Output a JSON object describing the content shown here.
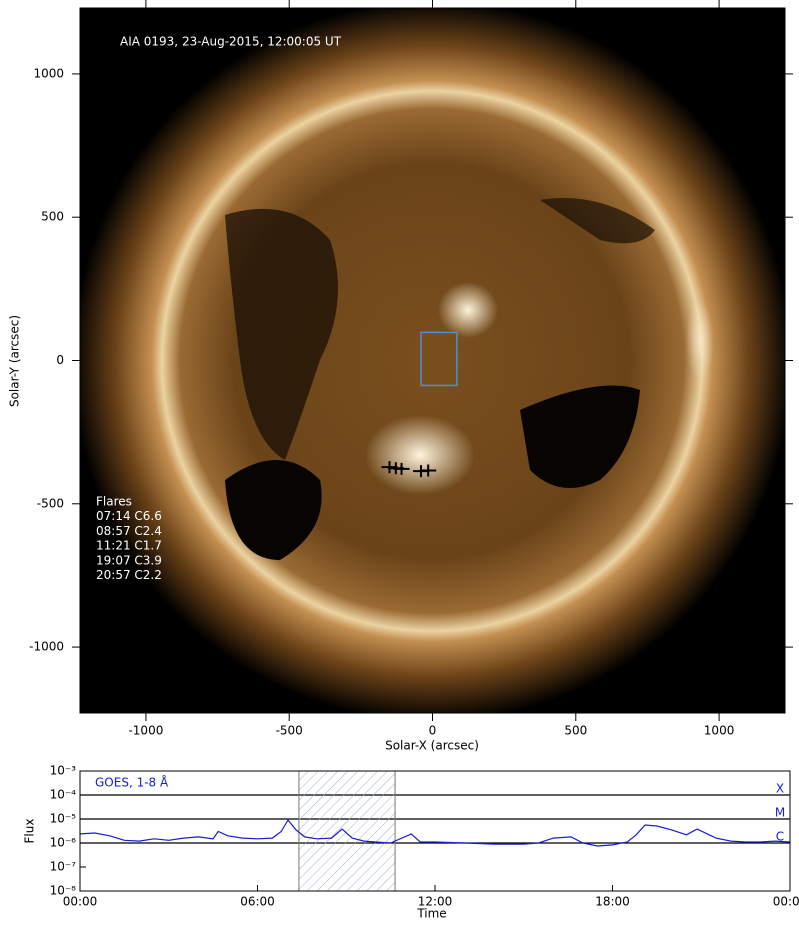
{
  "chart_data": [
    {
      "type": "image",
      "title": "AIA 0193, 23-Aug-2015, 12:00:05 UT",
      "xlabel": "Solar-X (arcsec)",
      "ylabel": "Solar-Y (arcsec)",
      "xlim": [
        -1230,
        1230
      ],
      "ylim": [
        -1230,
        1230
      ],
      "xticks": [
        -1000,
        -500,
        0,
        500,
        1000
      ],
      "yticks": [
        -1000,
        -500,
        0,
        500,
        1000
      ],
      "x": [
        -150,
        -128,
        -108,
        -40,
        -15
      ],
      "values": [
        -372,
        -376,
        -378,
        -386,
        -384
      ],
      "box": {
        "xlim": [
          -40,
          85
        ],
        "ylim": [
          -87,
          98
        ]
      },
      "annotations": [
        "Flares",
        "07:14 C6.6",
        "08:57 C2.4",
        "11:21 C1.7",
        "19:07 C3.9",
        "20:57 C2.2"
      ]
    },
    {
      "type": "line",
      "title": "GOES, 1-8 Å",
      "xlabel": "Time",
      "ylabel": "Flux",
      "log_y": true,
      "color": "#1a1ad8",
      "xlim": [
        0,
        24
      ],
      "xticks": [
        {
          "value": 0,
          "label": "00:00"
        },
        {
          "value": 6,
          "label": "06:00"
        },
        {
          "value": 12,
          "label": "12:00"
        },
        {
          "value": 18,
          "label": "18:00"
        },
        {
          "value": 24,
          "label": "00:00"
        }
      ],
      "ylim": [
        1e-08,
        0.001
      ],
      "yticks": [
        {
          "value": 1e-08,
          "label": "10⁻⁸"
        },
        {
          "value": 1e-07,
          "label": "10⁻⁷"
        },
        {
          "value": 1e-06,
          "label": "10⁻⁶"
        },
        {
          "value": 1e-05,
          "label": "10⁻⁵"
        },
        {
          "value": 0.0001,
          "label": "10⁻⁴"
        },
        {
          "value": 0.001,
          "label": "10⁻³"
        }
      ],
      "levels": [
        {
          "value": 0.0001,
          "label": "X"
        },
        {
          "value": 1e-05,
          "label": "M"
        },
        {
          "value": 1e-06,
          "label": "C"
        }
      ],
      "shade": [
        7.4,
        10.65
      ],
      "x": [
        0,
        0.5,
        1,
        1.5,
        2,
        2.5,
        3,
        3.5,
        4,
        4.5,
        4.67,
        5,
        5.5,
        6,
        6.5,
        6.8,
        7.03,
        7.3,
        7.6,
        8,
        8.5,
        8.86,
        9.2,
        9.6,
        10,
        10.5,
        11.2,
        11.5,
        12,
        13,
        14,
        15,
        15.5,
        16,
        16.6,
        17,
        17.5,
        18,
        18.5,
        18.8,
        19.1,
        19.5,
        20,
        20.5,
        20.86,
        21.5,
        22,
        22.5,
        23,
        23.5,
        24
      ],
      "values": [
        2.4e-06,
        2.6e-06,
        2e-06,
        1.3e-06,
        1.2e-06,
        1.5e-06,
        1.3e-06,
        1.6e-06,
        1.8e-06,
        1.5e-06,
        3e-06,
        2e-06,
        1.6e-06,
        1.5e-06,
        1.6e-06,
        3e-06,
        9.1e-06,
        3.5e-06,
        1.8e-06,
        1.5e-06,
        1.6e-06,
        3.8e-06,
        1.6e-06,
        1.2e-06,
        1.1e-06,
        1e-06,
        2.4e-06,
        1.1e-06,
        1.1e-06,
        1e-06,
        9e-07,
        9e-07,
        1e-06,
        1.6e-06,
        1.8e-06,
        1e-06,
        7.5e-07,
        8.3e-07,
        1.1e-06,
        2.2e-06,
        5.6e-06,
        5.1e-06,
        3.5e-06,
        2.2e-06,
        3.8e-06,
        1.6e-06,
        1.2e-06,
        1.1e-06,
        1.1e-06,
        1.2e-06,
        1.1e-06
      ]
    }
  ]
}
